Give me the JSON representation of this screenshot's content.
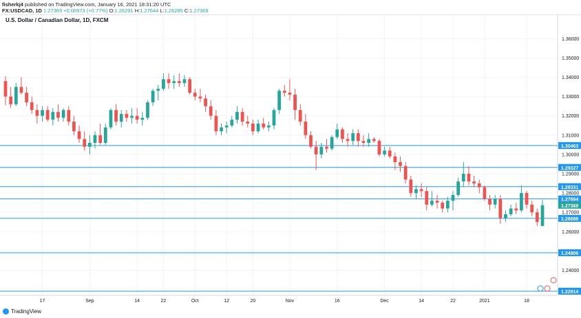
{
  "header": {
    "author": "fisherkj4",
    "published_text": " published on TradingView.com, January 16, 2021 18:31:20 UTC",
    "symbol": "FX:USDCAD, 1D",
    "last": "1.27369",
    "change": "+0.00973 (+0.77%)",
    "o_label": "O:",
    "o": "1.26291",
    "h_label": "H:",
    "h": "1.27644",
    "l_label": "L:",
    "l": "1.26285",
    "c_label": "C:",
    "c": "1.27369"
  },
  "chart_title": "U.S. Dollar / Canadian Dollar, 1D, FXCM",
  "footer": {
    "brand": "TradingView"
  },
  "colors": {
    "up": "#26a69a",
    "down": "#ef5350",
    "hline": "#2196f3",
    "grid": "#f0f3fa",
    "text": "#131722"
  },
  "chart_data": {
    "type": "candlestick",
    "title": "U.S. Dollar / Canadian Dollar, 1D, FXCM",
    "ylim": [
      1.227,
      1.3665
    ],
    "y_ticks": [
      "1.36000",
      "1.35000",
      "1.34000",
      "1.33000",
      "1.32000",
      "1.31000",
      "1.30000",
      "1.29000",
      "1.28000",
      "1.27000",
      "1.26000",
      "1.24000"
    ],
    "x_ticks": [
      {
        "label": "17",
        "index": 7
      },
      {
        "label": "Sep",
        "index": 16
      },
      {
        "label": "14",
        "index": 25
      },
      {
        "label": "22",
        "index": 30
      },
      {
        "label": "Oct",
        "index": 36
      },
      {
        "label": "12",
        "index": 42
      },
      {
        "label": "20",
        "index": 47
      },
      {
        "label": "Nov",
        "index": 54
      },
      {
        "label": "16",
        "index": 63
      },
      {
        "label": "Dec",
        "index": 72
      },
      {
        "label": "14",
        "index": 79
      },
      {
        "label": "22",
        "index": 85
      },
      {
        "label": "2021",
        "index": 91
      },
      {
        "label": "18",
        "index": 99
      }
    ],
    "horizontal_lines": [
      {
        "label": "1.30463",
        "value": 1.30463
      },
      {
        "label": "1.29327",
        "value": 1.29327
      },
      {
        "label": "1.28331",
        "value": 1.28331
      },
      {
        "label": "1.27694",
        "value": 1.27694
      },
      {
        "label": "1.26688",
        "value": 1.26688
      },
      {
        "label": "1.24906",
        "value": 1.24906
      },
      {
        "label": "1.22914",
        "value": 1.22914
      }
    ],
    "price_tag": {
      "label": "1.27369",
      "value": 1.27369
    },
    "candles": [
      [
        1.338,
        1.3405,
        1.3255,
        1.33
      ],
      [
        1.33,
        1.335,
        1.324,
        1.326
      ],
      [
        1.326,
        1.337,
        1.325,
        1.335
      ],
      [
        1.335,
        1.34,
        1.331,
        1.332
      ],
      [
        1.332,
        1.335,
        1.325,
        1.327
      ],
      [
        1.327,
        1.33,
        1.321,
        1.323
      ],
      [
        1.323,
        1.326,
        1.316,
        1.32
      ],
      [
        1.32,
        1.325,
        1.317,
        1.323
      ],
      [
        1.323,
        1.325,
        1.317,
        1.318
      ],
      [
        1.318,
        1.324,
        1.315,
        1.322
      ],
      [
        1.322,
        1.326,
        1.317,
        1.319
      ],
      [
        1.319,
        1.324,
        1.317,
        1.323
      ],
      [
        1.323,
        1.325,
        1.315,
        1.317
      ],
      [
        1.317,
        1.32,
        1.31,
        1.312
      ],
      [
        1.312,
        1.315,
        1.306,
        1.308
      ],
      [
        1.308,
        1.312,
        1.302,
        1.304
      ],
      [
        1.304,
        1.31,
        1.3,
        1.306
      ],
      [
        1.306,
        1.312,
        1.303,
        1.31
      ],
      [
        1.31,
        1.316,
        1.305,
        1.306
      ],
      [
        1.306,
        1.316,
        1.305,
        1.314
      ],
      [
        1.314,
        1.324,
        1.313,
        1.323
      ],
      [
        1.323,
        1.326,
        1.315,
        1.317
      ],
      [
        1.317,
        1.323,
        1.314,
        1.321
      ],
      [
        1.321,
        1.323,
        1.317,
        1.319
      ],
      [
        1.319,
        1.324,
        1.316,
        1.32
      ],
      [
        1.32,
        1.324,
        1.316,
        1.318
      ],
      [
        1.318,
        1.322,
        1.315,
        1.319
      ],
      [
        1.319,
        1.328,
        1.318,
        1.327
      ],
      [
        1.327,
        1.334,
        1.325,
        1.333
      ],
      [
        1.333,
        1.336,
        1.328,
        1.334
      ],
      [
        1.334,
        1.342,
        1.333,
        1.339
      ],
      [
        1.339,
        1.342,
        1.334,
        1.337
      ],
      [
        1.337,
        1.341,
        1.334,
        1.338
      ],
      [
        1.338,
        1.342,
        1.335,
        1.337
      ],
      [
        1.337,
        1.341,
        1.335,
        1.339
      ],
      [
        1.339,
        1.34,
        1.331,
        1.332
      ],
      [
        1.332,
        1.334,
        1.328,
        1.33
      ],
      [
        1.33,
        1.334,
        1.327,
        1.329
      ],
      [
        1.329,
        1.331,
        1.322,
        1.325
      ],
      [
        1.325,
        1.328,
        1.318,
        1.32
      ],
      [
        1.32,
        1.323,
        1.31,
        1.312
      ],
      [
        1.312,
        1.316,
        1.31,
        1.314
      ],
      [
        1.314,
        1.317,
        1.311,
        1.315
      ],
      [
        1.315,
        1.32,
        1.314,
        1.318
      ],
      [
        1.318,
        1.325,
        1.316,
        1.322
      ],
      [
        1.322,
        1.324,
        1.315,
        1.317
      ],
      [
        1.317,
        1.32,
        1.314,
        1.316
      ],
      [
        1.316,
        1.318,
        1.31,
        1.312
      ],
      [
        1.312,
        1.318,
        1.311,
        1.316
      ],
      [
        1.316,
        1.319,
        1.313,
        1.314
      ],
      [
        1.314,
        1.317,
        1.312,
        1.315
      ],
      [
        1.315,
        1.324,
        1.313,
        1.323
      ],
      [
        1.323,
        1.334,
        1.321,
        1.333
      ],
      [
        1.333,
        1.336,
        1.33,
        1.332
      ],
      [
        1.332,
        1.339,
        1.328,
        1.331
      ],
      [
        1.331,
        1.334,
        1.318,
        1.323
      ],
      [
        1.323,
        1.326,
        1.315,
        1.317
      ],
      [
        1.317,
        1.321,
        1.308,
        1.31
      ],
      [
        1.31,
        1.312,
        1.303,
        1.304
      ],
      [
        1.304,
        1.307,
        1.292,
        1.3
      ],
      [
        1.3,
        1.306,
        1.298,
        1.304
      ],
      [
        1.304,
        1.308,
        1.301,
        1.303
      ],
      [
        1.303,
        1.31,
        1.302,
        1.309
      ],
      [
        1.309,
        1.316,
        1.308,
        1.313
      ],
      [
        1.313,
        1.314,
        1.306,
        1.308
      ],
      [
        1.308,
        1.311,
        1.304,
        1.307
      ],
      [
        1.307,
        1.313,
        1.305,
        1.311
      ],
      [
        1.311,
        1.313,
        1.304,
        1.307
      ],
      [
        1.307,
        1.31,
        1.304,
        1.306
      ],
      [
        1.306,
        1.311,
        1.304,
        1.308
      ],
      [
        1.308,
        1.309,
        1.306,
        1.307
      ],
      [
        1.307,
        1.308,
        1.299,
        1.3
      ],
      [
        1.3,
        1.304,
        1.299,
        1.302
      ],
      [
        1.302,
        1.304,
        1.298,
        1.299
      ],
      [
        1.299,
        1.301,
        1.292,
        1.296
      ],
      [
        1.296,
        1.299,
        1.291,
        1.294
      ],
      [
        1.294,
        1.296,
        1.285,
        1.287
      ],
      [
        1.287,
        1.289,
        1.278,
        1.28
      ],
      [
        1.28,
        1.284,
        1.277,
        1.282
      ],
      [
        1.282,
        1.285,
        1.278,
        1.281
      ],
      [
        1.281,
        1.283,
        1.271,
        1.274
      ],
      [
        1.274,
        1.281,
        1.273,
        1.276
      ],
      [
        1.276,
        1.279,
        1.272,
        1.275
      ],
      [
        1.275,
        1.276,
        1.27,
        1.272
      ],
      [
        1.272,
        1.278,
        1.27,
        1.276
      ],
      [
        1.276,
        1.281,
        1.271,
        1.279
      ],
      [
        1.279,
        1.288,
        1.278,
        1.286
      ],
      [
        1.286,
        1.296,
        1.283,
        1.29
      ],
      [
        1.29,
        1.294,
        1.284,
        1.286
      ],
      [
        1.286,
        1.289,
        1.283,
        1.285
      ],
      [
        1.285,
        1.287,
        1.28,
        1.283
      ],
      [
        1.283,
        1.284,
        1.276,
        1.277
      ],
      [
        1.277,
        1.279,
        1.271,
        1.274
      ],
      [
        1.274,
        1.279,
        1.272,
        1.277
      ],
      [
        1.277,
        1.279,
        1.264,
        1.267
      ],
      [
        1.267,
        1.271,
        1.265,
        1.269
      ],
      [
        1.269,
        1.274,
        1.268,
        1.272
      ],
      [
        1.272,
        1.275,
        1.269,
        1.271
      ],
      [
        1.271,
        1.284,
        1.27,
        1.28
      ],
      [
        1.28,
        1.281,
        1.272,
        1.274
      ],
      [
        1.274,
        1.276,
        1.268,
        1.27
      ],
      [
        1.27,
        1.272,
        1.263,
        1.265
      ],
      [
        1.26291,
        1.27644,
        1.26285,
        1.27369
      ]
    ]
  }
}
